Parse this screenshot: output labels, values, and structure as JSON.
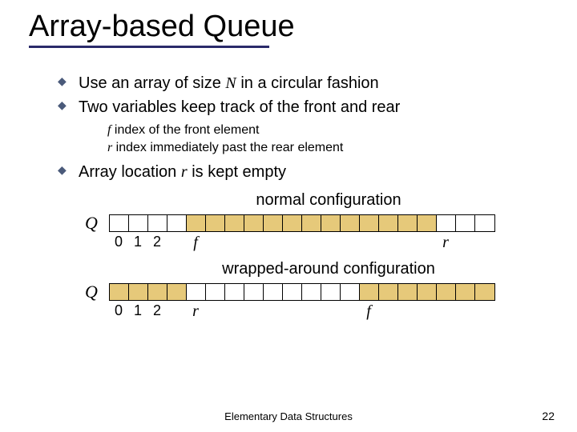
{
  "title": "Array-based Queue",
  "title_underline_color": "#2a2a6a",
  "bullets": {
    "b1_pre": "Use an array of size ",
    "b1_var": "N",
    "b1_post": " in a circular fashion",
    "b2": "Two variables keep track of the front and rear",
    "sub_f_var": "f",
    "sub_f_text": "  index of the front element",
    "sub_r_var": "r",
    "sub_r_text": "  index immediately past the rear element",
    "b3_pre": "Array location ",
    "b3_var": "r",
    "b3_post": " is kept empty"
  },
  "configs": {
    "normal_label": "normal configuration",
    "wrapped_label": "wrapped-around configuration",
    "q_label": "Q"
  },
  "colors": {
    "filled": "#e6c97a",
    "empty": "#ffffff",
    "border": "#000000"
  },
  "normal_array": {
    "count": 20,
    "filled_indices": [
      4,
      5,
      6,
      7,
      8,
      9,
      10,
      11,
      12,
      13,
      14,
      15,
      16
    ],
    "index_labels": {
      "0": "0",
      "1": "1",
      "2": "2",
      "4": "f",
      "17": "r"
    }
  },
  "wrapped_array": {
    "count": 20,
    "filled_indices": [
      0,
      1,
      2,
      3,
      13,
      14,
      15,
      16,
      17,
      18,
      19
    ],
    "index_labels": {
      "0": "0",
      "1": "1",
      "2": "2",
      "4": "r",
      "13": "f"
    }
  },
  "footer": "Elementary Data Structures",
  "page": "22"
}
